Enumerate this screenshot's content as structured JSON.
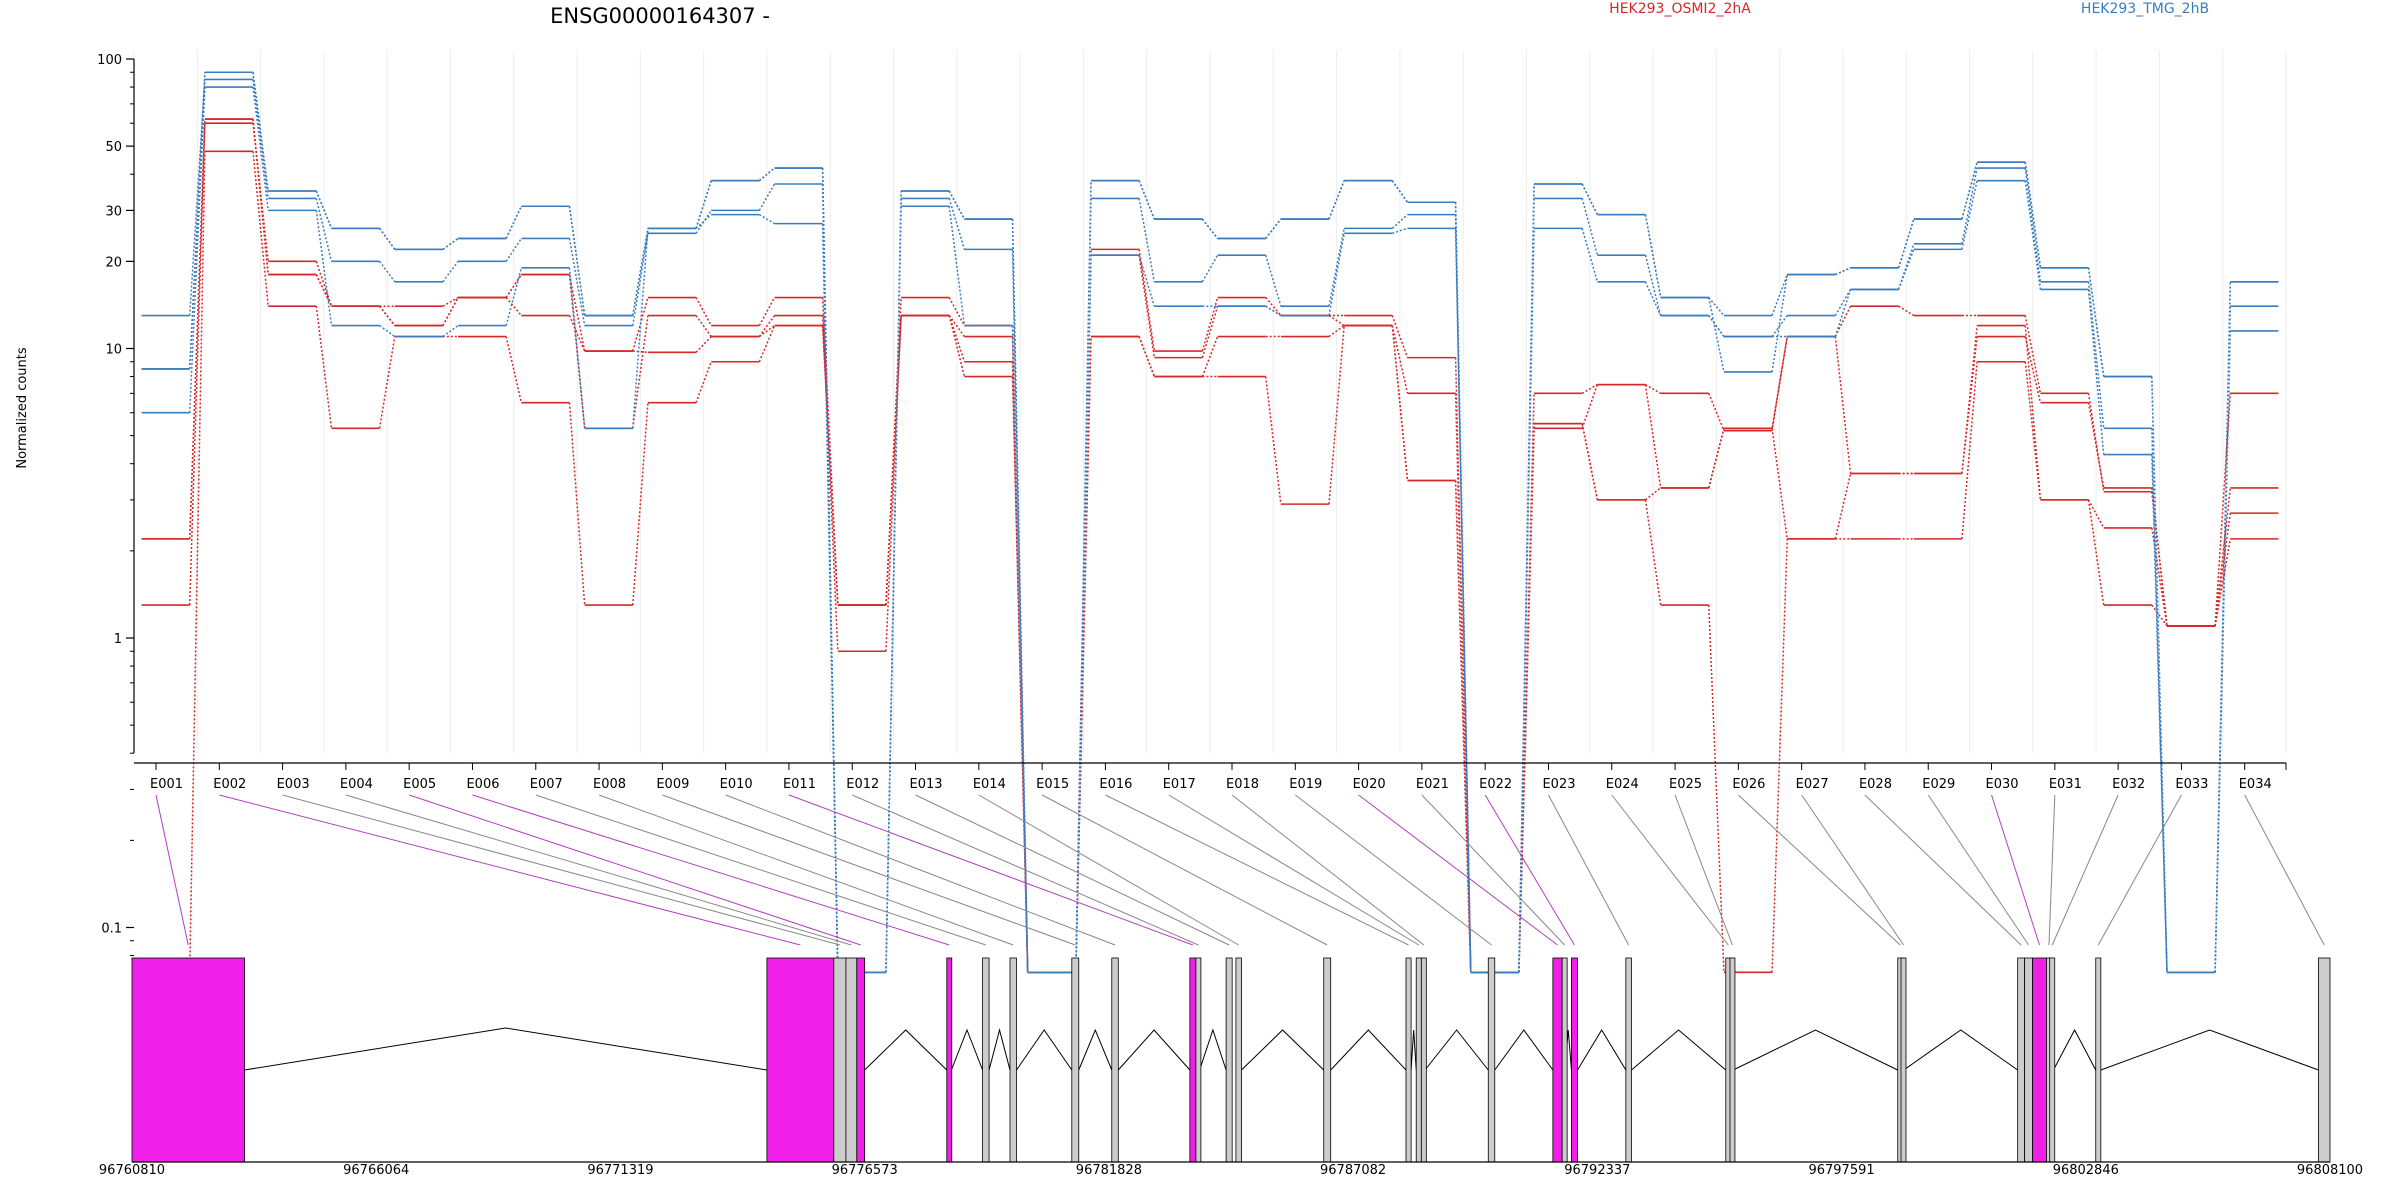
{
  "chart_data": {
    "type": "line",
    "title": "ENSG00000164307 -",
    "ylabel": "Normalized counts",
    "yscale": "log",
    "ylim": [
      0.07,
      100
    ],
    "yticks": [
      "0.1",
      "1",
      "10",
      "20",
      "30",
      "50",
      "100"
    ],
    "colors": {
      "s1": "#d62728",
      "s2": "#3a7dbf",
      "exon_sig": "#f020e8",
      "exon": "#cccccc"
    },
    "legend": [
      "HEK293_OSMI2_2hA",
      "HEK293_TMG_2hB"
    ],
    "categories": [
      "E001",
      "E002",
      "E003",
      "E004",
      "E005",
      "E006",
      "E007",
      "E008",
      "E009",
      "E010",
      "E011",
      "E012",
      "E013",
      "E014",
      "E015",
      "E016",
      "E017",
      "E018",
      "E019",
      "E020",
      "E021",
      "E022",
      "E023",
      "E024",
      "E025",
      "E026",
      "E027",
      "E028",
      "E029",
      "E030",
      "E031",
      "E032",
      "E033",
      "E034"
    ],
    "series": [
      {
        "name": "HEK293_OSMI2_2hA",
        "group": 1,
        "values": [
          1.3,
          60,
          20,
          14,
          14,
          15,
          18,
          9.8,
          15,
          12,
          15,
          1.3,
          15,
          12,
          0.07,
          22,
          9.8,
          15,
          13,
          13,
          9.3,
          0.07,
          7,
          7.5,
          7,
          5.2,
          11,
          14,
          13,
          13,
          7,
          3.2,
          1.1,
          7
        ]
      },
      {
        "name": "HEK293_OSMI2_2hA",
        "group": 1,
        "values": [
          2.2,
          62,
          18,
          14,
          12,
          15,
          18,
          5.3,
          13,
          11,
          13,
          0.9,
          13,
          11,
          0.07,
          21,
          9.3,
          14,
          13,
          12,
          7,
          0.07,
          5.3,
          7.5,
          3.3,
          5.3,
          11,
          3.7,
          3.7,
          11,
          6.5,
          3.3,
          1.1,
          3.3
        ]
      },
      {
        "name": "HEK293_OSMI2_2hA",
        "group": 1,
        "values": [
          0.07,
          48,
          14,
          5.3,
          11,
          11,
          6.5,
          1.3,
          6.5,
          9,
          12,
          1.3,
          13,
          8,
          0.07,
          11,
          8,
          8,
          2.9,
          12,
          3.5,
          0.07,
          5.5,
          3,
          1.3,
          0.07,
          2.2,
          2.2,
          2.2,
          9,
          3,
          1.3,
          1.1,
          2.2
        ]
      },
      {
        "name": "HEK293_OSMI2_2hA",
        "group": 1,
        "values": [
          2.2,
          62,
          18,
          14,
          12,
          15,
          13,
          9.8,
          9.7,
          11,
          12,
          1.3,
          13,
          9,
          0.07,
          11,
          8,
          11,
          11,
          12,
          3.5,
          0.07,
          5.5,
          3,
          3.3,
          5.3,
          2.2,
          3.7,
          3.7,
          12,
          3,
          2.4,
          1.1,
          2.7
        ]
      },
      {
        "name": "HEK293_TMG_2hB",
        "group": 2,
        "values": [
          8.5,
          90,
          35,
          26,
          22,
          24,
          31,
          13,
          26,
          38,
          42,
          0.07,
          35,
          28,
          0.07,
          38,
          28,
          24,
          28,
          38,
          32,
          0.07,
          37,
          29,
          15,
          13,
          18,
          19,
          28,
          44,
          19,
          8,
          0.07,
          17
        ]
      },
      {
        "name": "HEK293_TMG_2hB",
        "group": 2,
        "values": [
          13,
          85,
          33,
          20,
          17,
          20,
          24,
          12,
          25,
          30,
          37,
          0.07,
          33,
          22,
          0.07,
          33,
          17,
          21,
          14,
          26,
          29,
          0.07,
          33,
          21,
          13,
          11,
          13,
          16,
          23,
          42,
          17,
          5.3,
          0.07,
          14
        ]
      },
      {
        "name": "HEK293_TMG_2hB",
        "group": 2,
        "values": [
          6,
          80,
          30,
          12,
          11,
          12,
          19,
          5.3,
          26,
          29,
          27,
          0.07,
          31,
          12,
          0.07,
          21,
          14,
          14,
          13,
          25,
          26,
          0.07,
          26,
          17,
          13,
          11,
          11,
          16,
          22,
          38,
          16,
          4.3,
          0.07,
          11.5
        ]
      },
      {
        "name": "HEK293_TMG_2hB",
        "group": 2,
        "values": [
          8.5,
          90,
          35,
          26,
          22,
          24,
          31,
          13,
          26,
          38,
          42,
          0.07,
          35,
          28,
          0.07,
          38,
          28,
          24,
          28,
          38,
          32,
          0.07,
          37,
          29,
          15,
          8.3,
          18,
          19,
          28,
          44,
          19,
          8,
          0.07,
          17
        ]
      }
    ],
    "gene_model": {
      "coordinate_labels": [
        "96760810",
        "96766064",
        "96771319",
        "96776573",
        "96781828",
        "96787082",
        "96792337",
        "96797591",
        "96802846",
        "96808100"
      ],
      "genomic_range": [
        96760810,
        96808100
      ],
      "exons": [
        {
          "id": "E001",
          "start": 96760810,
          "end": 96763231,
          "significant": true
        },
        {
          "id": "E002",
          "start": 96774470,
          "end": 96775910,
          "significant": true
        },
        {
          "id": "E003",
          "start": 96775910,
          "end": 96776170,
          "significant": false
        },
        {
          "id": "E004",
          "start": 96776170,
          "end": 96776404,
          "significant": false
        },
        {
          "id": "E005",
          "start": 96776404,
          "end": 96776573,
          "significant": true
        },
        {
          "id": "E006",
          "start": 96778340,
          "end": 96778440,
          "significant": true
        },
        {
          "id": "E007",
          "start": 96779110,
          "end": 96779250,
          "significant": false
        },
        {
          "id": "E008",
          "start": 96779700,
          "end": 96779840,
          "significant": false
        },
        {
          "id": "E009",
          "start": 96781030,
          "end": 96781180,
          "significant": false
        },
        {
          "id": "E010",
          "start": 96781890,
          "end": 96782030,
          "significant": false
        },
        {
          "id": "E011",
          "start": 96783570,
          "end": 96783700,
          "significant": true
        },
        {
          "id": "E012",
          "start": 96783700,
          "end": 96783780,
          "significant": false
        },
        {
          "id": "E013",
          "start": 96784350,
          "end": 96784480,
          "significant": false
        },
        {
          "id": "E014",
          "start": 96784560,
          "end": 96784680,
          "significant": false
        },
        {
          "id": "E015",
          "start": 96786450,
          "end": 96786600,
          "significant": false
        },
        {
          "id": "E016",
          "start": 96788220,
          "end": 96788330,
          "significant": false
        },
        {
          "id": "E017",
          "start": 96788440,
          "end": 96788550,
          "significant": false
        },
        {
          "id": "E018",
          "start": 96788550,
          "end": 96788630,
          "significant": false
        },
        {
          "id": "E019",
          "start": 96789990,
          "end": 96790130,
          "significant": false
        },
        {
          "id": "E020",
          "start": 96791380,
          "end": 96791580,
          "significant": true
        },
        {
          "id": "E021",
          "start": 96791580,
          "end": 96791640,
          "significant": false
        },
        {
          "id": "E022",
          "start": 96791780,
          "end": 96791910,
          "significant": true
        },
        {
          "id": "E023",
          "start": 96792950,
          "end": 96793070,
          "significant": false
        },
        {
          "id": "E024",
          "start": 96795100,
          "end": 96795190,
          "significant": false
        },
        {
          "id": "E025",
          "start": 96795190,
          "end": 96795260,
          "significant": false
        },
        {
          "id": "E026",
          "start": 96798800,
          "end": 96798870,
          "significant": false
        },
        {
          "id": "E027",
          "start": 96798870,
          "end": 96798930,
          "significant": false
        },
        {
          "id": "E028",
          "start": 96801380,
          "end": 96801530,
          "significant": false
        },
        {
          "id": "E029",
          "start": 96801530,
          "end": 96801700,
          "significant": false
        },
        {
          "id": "E030",
          "start": 96801700,
          "end": 96802000,
          "significant": true
        },
        {
          "id": "E031",
          "start": 96802000,
          "end": 96802070,
          "significant": false
        },
        {
          "id": "E032",
          "start": 96802070,
          "end": 96802150,
          "significant": false
        },
        {
          "id": "E033",
          "start": 96803060,
          "end": 96803170,
          "significant": false
        },
        {
          "id": "E034",
          "start": 96807850,
          "end": 96808100,
          "significant": false
        }
      ]
    }
  }
}
